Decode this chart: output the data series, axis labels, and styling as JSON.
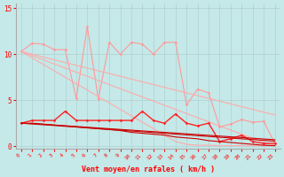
{
  "xlabel": "Vent moyen/en rafales ( km/h )",
  "xlim": [
    -0.5,
    23.5
  ],
  "ylim": [
    -0.3,
    15.5
  ],
  "yticks": [
    0,
    5,
    10,
    15
  ],
  "xticks": [
    0,
    1,
    2,
    3,
    4,
    5,
    6,
    7,
    8,
    9,
    10,
    11,
    12,
    13,
    14,
    15,
    16,
    17,
    18,
    19,
    20,
    21,
    22,
    23
  ],
  "background_color": "#c5e8e8",
  "grid_color": "#b0d0d0",
  "series": [
    {
      "y": [
        10.3,
        11.2,
        11.1,
        10.5,
        10.5,
        5.2,
        13.0,
        5.1,
        11.3,
        10.0,
        11.3,
        11.1,
        10.0,
        11.3,
        11.3,
        4.5,
        6.2,
        5.8,
        2.1,
        2.4,
        2.9,
        2.6,
        2.7,
        0.3
      ],
      "color": "#ff9999",
      "lw": 0.8,
      "marker": "D",
      "ms": 1.8
    },
    {
      "y": [
        10.3,
        9.6,
        8.9,
        8.2,
        7.5,
        6.8,
        6.1,
        5.4,
        4.7,
        4.0,
        3.3,
        2.6,
        1.9,
        1.2,
        0.5,
        0.2,
        0.1,
        0.1,
        0.05,
        0.05,
        0.05,
        0.05,
        0.05,
        0.05
      ],
      "color": "#ffaaaa",
      "lw": 0.8,
      "marker": null,
      "ms": 0
    },
    {
      "y": [
        10.3,
        9.85,
        9.4,
        8.95,
        8.5,
        8.05,
        7.6,
        7.15,
        6.7,
        6.25,
        5.8,
        5.35,
        4.9,
        4.45,
        4.0,
        3.55,
        3.1,
        2.65,
        2.2,
        1.75,
        1.3,
        0.85,
        0.4,
        0.1
      ],
      "color": "#ffaaaa",
      "lw": 0.8,
      "marker": null,
      "ms": 0
    },
    {
      "y": [
        10.3,
        10.0,
        9.7,
        9.4,
        9.1,
        8.8,
        8.5,
        8.2,
        7.9,
        7.6,
        7.3,
        7.0,
        6.7,
        6.4,
        6.1,
        5.8,
        5.5,
        5.2,
        4.9,
        4.6,
        4.3,
        4.0,
        3.7,
        3.4
      ],
      "color": "#ffaaaa",
      "lw": 0.8,
      "marker": null,
      "ms": 0
    },
    {
      "y": [
        2.5,
        2.8,
        2.8,
        2.8,
        3.8,
        2.8,
        2.8,
        2.8,
        2.8,
        2.8,
        2.8,
        3.8,
        2.8,
        2.5,
        3.5,
        2.5,
        2.2,
        2.5,
        0.5,
        0.8,
        1.2,
        0.5,
        0.3,
        0.3
      ],
      "color": "#ff2222",
      "lw": 1.0,
      "marker": "D",
      "ms": 1.8
    },
    {
      "y": [
        2.5,
        2.5,
        2.4,
        2.3,
        2.2,
        2.1,
        2.0,
        1.9,
        1.8,
        1.7,
        1.5,
        1.4,
        1.3,
        1.2,
        1.0,
        0.9,
        0.8,
        0.6,
        0.5,
        0.4,
        0.3,
        0.2,
        0.1,
        0.05
      ],
      "color": "#cc0000",
      "lw": 0.8,
      "marker": null,
      "ms": 0
    },
    {
      "y": [
        2.5,
        2.45,
        2.38,
        2.3,
        2.22,
        2.14,
        2.06,
        1.98,
        1.9,
        1.82,
        1.74,
        1.66,
        1.58,
        1.5,
        1.42,
        1.34,
        1.26,
        1.18,
        1.1,
        1.02,
        0.94,
        0.86,
        0.78,
        0.7
      ],
      "color": "#cc0000",
      "lw": 0.8,
      "marker": null,
      "ms": 0
    },
    {
      "y": [
        2.5,
        2.42,
        2.33,
        2.25,
        2.16,
        2.08,
        1.99,
        1.91,
        1.82,
        1.74,
        1.65,
        1.57,
        1.48,
        1.4,
        1.31,
        1.23,
        1.14,
        1.06,
        0.97,
        0.89,
        0.8,
        0.72,
        0.63,
        0.55
      ],
      "color": "#cc0000",
      "lw": 0.8,
      "marker": null,
      "ms": 0
    }
  ]
}
